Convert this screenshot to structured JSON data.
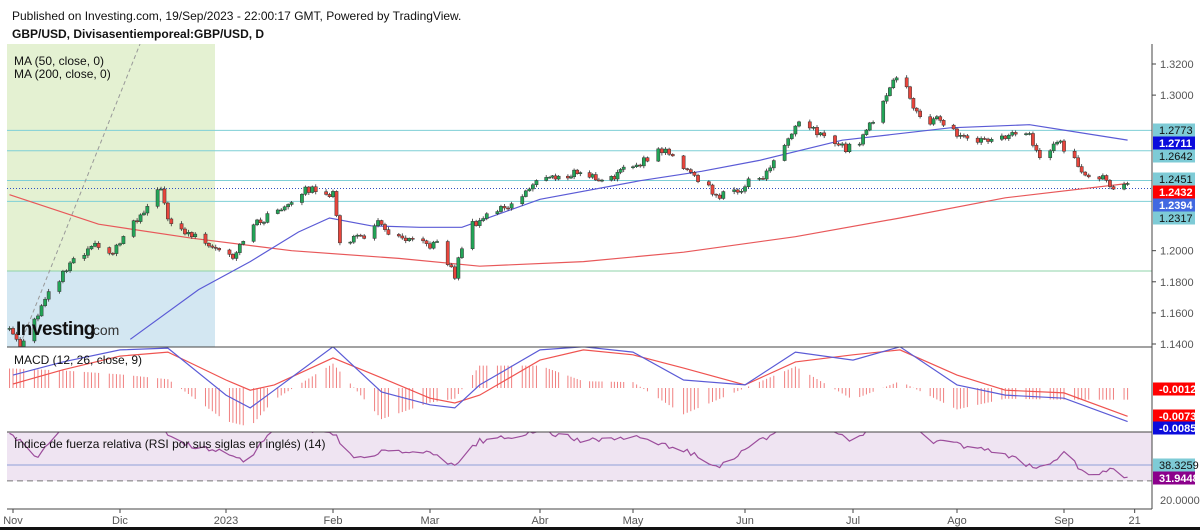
{
  "header": {
    "published": "Published on Investing.com, 19/Sep/2023 - 22:00:17 GMT, Powered by TradingView.",
    "symbol": "GBP/USD, Divisasentiemporeal:GBP/USD, D"
  },
  "logo": {
    "text": "Investing",
    "suffix": ".com"
  },
  "colors": {
    "up": "#22a557",
    "down": "#e8453c",
    "ma50": "#5b5bd6",
    "ma200": "#e8585a",
    "level_line": "#7fcfd6",
    "level_label": "#7ecbd6",
    "macd": "#5b5bd6",
    "signal": "#ef5350",
    "histogram": "#f08080",
    "rsi": "#9c4d9c",
    "rsi_band": "#efe4f2",
    "zone_green": "#e4f1d2",
    "zone_blue": "#d3e7f2"
  },
  "chart_data": [
    {
      "type": "candlestick",
      "title": "GBP/USD, Divisasentiemporeal:GBP/USD, D",
      "legend": [
        "MA (50, close, 0)",
        "MA (200, close, 0)"
      ],
      "ylim": [
        1.14,
        1.33
      ],
      "yticks": [
        "1.3200",
        "1.3000",
        "1.2000",
        "1.1800",
        "1.1600",
        "1.1400"
      ],
      "xticks": [
        "Nov",
        "Dic",
        "2023",
        "Feb",
        "Mar",
        "Abr",
        "May",
        "Jun",
        "Jul",
        "Ago",
        "Sep",
        "21"
      ],
      "xtick_dates": [
        "2022-11-01",
        "2022-12-01",
        "2023-01-01",
        "2023-02-01",
        "2023-03-01",
        "2023-04-01",
        "2023-05-01",
        "2023-06-01",
        "2023-07-01",
        "2023-08-01",
        "2023-09-01",
        "2023-09-21"
      ],
      "close_anchors": [
        [
          "2022-10-31",
          1.15
        ],
        [
          "2022-11-03",
          1.14
        ],
        [
          "2022-11-10",
          1.168
        ],
        [
          "2022-11-17",
          1.191
        ],
        [
          "2022-11-25",
          1.204
        ],
        [
          "2022-11-28",
          1.196
        ],
        [
          "2022-12-05",
          1.217
        ],
        [
          "2022-12-09",
          1.226
        ],
        [
          "2022-12-13",
          1.242
        ],
        [
          "2022-12-15",
          1.218
        ],
        [
          "2022-12-20",
          1.212
        ],
        [
          "2022-12-27",
          1.205
        ],
        [
          "2023-01-03",
          1.197
        ],
        [
          "2023-01-06",
          1.208
        ],
        [
          "2023-01-09",
          1.216
        ],
        [
          "2023-01-16",
          1.226
        ],
        [
          "2023-01-23",
          1.238
        ],
        [
          "2023-01-27",
          1.24
        ],
        [
          "2023-02-01",
          1.236
        ],
        [
          "2023-02-03",
          1.206
        ],
        [
          "2023-02-10",
          1.21
        ],
        [
          "2023-02-14",
          1.217
        ],
        [
          "2023-02-20",
          1.207
        ],
        [
          "2023-02-27",
          1.204
        ],
        [
          "2023-03-03",
          1.204
        ],
        [
          "2023-03-08",
          1.184
        ],
        [
          "2023-03-10",
          1.203
        ],
        [
          "2023-03-13",
          1.217
        ],
        [
          "2023-03-17",
          1.223
        ],
        [
          "2023-03-23",
          1.229
        ],
        [
          "2023-03-27",
          1.236
        ],
        [
          "2023-04-03",
          1.249
        ],
        [
          "2023-04-07",
          1.246
        ],
        [
          "2023-04-13",
          1.251
        ],
        [
          "2023-04-20",
          1.246
        ],
        [
          "2023-04-26",
          1.249
        ],
        [
          "2023-05-03",
          1.257
        ],
        [
          "2023-05-09",
          1.265
        ],
        [
          "2023-05-15",
          1.255
        ],
        [
          "2023-05-19",
          1.246
        ],
        [
          "2023-05-25",
          1.235
        ],
        [
          "2023-05-30",
          1.238
        ],
        [
          "2023-06-02",
          1.246
        ],
        [
          "2023-06-06",
          1.246
        ],
        [
          "2023-06-09",
          1.258
        ],
        [
          "2023-06-16",
          1.281
        ],
        [
          "2023-06-22",
          1.275
        ],
        [
          "2023-06-29",
          1.265
        ],
        [
          "2023-07-03",
          1.271
        ],
        [
          "2023-07-07",
          1.284
        ],
        [
          "2023-07-13",
          1.311
        ],
        [
          "2023-07-17",
          1.306
        ],
        [
          "2023-07-19",
          1.29
        ],
        [
          "2023-07-24",
          1.283
        ],
        [
          "2023-07-27",
          1.284
        ],
        [
          "2023-08-03",
          1.272
        ],
        [
          "2023-08-09",
          1.271
        ],
        [
          "2023-08-16",
          1.274
        ],
        [
          "2023-08-22",
          1.274
        ],
        [
          "2023-08-25",
          1.258
        ],
        [
          "2023-08-30",
          1.271
        ],
        [
          "2023-09-05",
          1.255
        ],
        [
          "2023-09-08",
          1.249
        ],
        [
          "2023-09-13",
          1.247
        ],
        [
          "2023-09-15",
          1.238
        ],
        [
          "2023-09-19",
          1.2432
        ]
      ],
      "ma50": [
        [
          "2022-12-04",
          1.143
        ],
        [
          "2022-12-24",
          1.175
        ],
        [
          "2023-01-08",
          1.193
        ],
        [
          "2023-01-22",
          1.212
        ],
        [
          "2023-01-31",
          1.221
        ],
        [
          "2023-02-12",
          1.216
        ],
        [
          "2023-02-26",
          1.215
        ],
        [
          "2023-03-10",
          1.215
        ],
        [
          "2023-04-01",
          1.233
        ],
        [
          "2023-05-03",
          1.245
        ],
        [
          "2023-05-20",
          1.251
        ],
        [
          "2023-06-05",
          1.258
        ],
        [
          "2023-06-28",
          1.271
        ],
        [
          "2023-07-30",
          1.279
        ],
        [
          "2023-08-22",
          1.281
        ],
        [
          "2023-09-19",
          1.2711
        ]
      ],
      "ma200": [
        [
          "2022-10-31",
          1.236
        ],
        [
          "2022-11-25",
          1.217
        ],
        [
          "2022-12-22",
          1.208
        ],
        [
          "2023-01-20",
          1.2
        ],
        [
          "2023-02-20",
          1.195
        ],
        [
          "2023-03-15",
          1.19
        ],
        [
          "2023-04-15",
          1.193
        ],
        [
          "2023-05-15",
          1.199
        ],
        [
          "2023-06-15",
          1.209
        ],
        [
          "2023-07-15",
          1.221
        ],
        [
          "2023-08-15",
          1.234
        ],
        [
          "2023-09-19",
          1.2432
        ]
      ],
      "levels": [
        {
          "value": 1.2773,
          "label": "1.2773",
          "style": "level"
        },
        {
          "value": 1.2642,
          "label": "1.2642",
          "style": "level"
        },
        {
          "value": 1.2451,
          "label": "1.2451",
          "style": "level"
        },
        {
          "value": 1.2317,
          "label": "1.2317",
          "style": "level"
        }
      ],
      "price_labels": [
        {
          "text": "1.2773",
          "bg": "#7ecbd6",
          "fg": "#111"
        },
        {
          "text": "1.2711",
          "bg": "#0b0bdc",
          "fg": "#fff"
        },
        {
          "text": "1.2642",
          "bg": "#7ecbd6",
          "fg": "#111"
        },
        {
          "text": "1.2451",
          "bg": "#7ecbd6",
          "fg": "#111"
        },
        {
          "text": "1.2432",
          "bg": "#ff0000",
          "fg": "#fff"
        },
        {
          "text": "1.2394",
          "bg": "#4169e1",
          "fg": "#fff"
        },
        {
          "text": "1.2317",
          "bg": "#7ecbd6",
          "fg": "#111"
        }
      ],
      "last_price": 1.2432
    },
    {
      "type": "line",
      "title": "MACD (12, 26, close, 9)",
      "macd": [
        [
          "2022-11-01",
          0.002
        ],
        [
          "2022-11-15",
          0.005
        ],
        [
          "2022-12-01",
          0.0077
        ],
        [
          "2022-12-15",
          0.0081
        ],
        [
          "2023-01-01",
          -0.0025
        ],
        [
          "2023-01-08",
          -0.0054
        ],
        [
          "2023-01-15",
          -0.0014
        ],
        [
          "2023-02-01",
          0.0084
        ],
        [
          "2023-02-15",
          -0.0018
        ],
        [
          "2023-03-01",
          -0.0047
        ],
        [
          "2023-03-08",
          -0.0054
        ],
        [
          "2023-03-15",
          -0.0002
        ],
        [
          "2023-04-01",
          0.0077
        ],
        [
          "2023-04-15",
          0.0084
        ],
        [
          "2023-05-01",
          0.0072
        ],
        [
          "2023-05-15",
          0.0009
        ],
        [
          "2023-06-01",
          -0.0002
        ],
        [
          "2023-06-15",
          0.0072
        ],
        [
          "2023-07-01",
          0.0054
        ],
        [
          "2023-07-15",
          0.0084
        ],
        [
          "2023-08-01",
          -0.0002
        ],
        [
          "2023-08-15",
          -0.0025
        ],
        [
          "2023-09-01",
          -0.0032
        ],
        [
          "2023-09-19",
          -0.0085
        ]
      ],
      "signal": [
        [
          "2022-11-01",
          0.0
        ],
        [
          "2022-11-15",
          0.0032
        ],
        [
          "2022-12-01",
          0.0063
        ],
        [
          "2022-12-15",
          0.0072
        ],
        [
          "2023-01-01",
          0.0009
        ],
        [
          "2023-01-08",
          -0.0014
        ],
        [
          "2023-01-15",
          -0.0002
        ],
        [
          "2023-02-01",
          0.0059
        ],
        [
          "2023-02-15",
          0.0014
        ],
        [
          "2023-03-01",
          -0.0032
        ],
        [
          "2023-03-08",
          -0.0043
        ],
        [
          "2023-03-15",
          -0.0025
        ],
        [
          "2023-04-01",
          0.0054
        ],
        [
          "2023-04-15",
          0.0077
        ],
        [
          "2023-05-01",
          0.0066
        ],
        [
          "2023-05-15",
          0.0036
        ],
        [
          "2023-06-01",
          -0.0002
        ],
        [
          "2023-06-15",
          0.005
        ],
        [
          "2023-07-01",
          0.0066
        ],
        [
          "2023-07-15",
          0.0077
        ],
        [
          "2023-08-01",
          0.002
        ],
        [
          "2023-08-15",
          -0.0014
        ],
        [
          "2023-09-01",
          -0.002
        ],
        [
          "2023-09-19",
          -0.0073
        ]
      ],
      "labels": [
        {
          "text": "-0.0012",
          "bg": "#ff0000",
          "fg": "#fff"
        },
        {
          "text": "-0.0073",
          "bg": "#ff0000",
          "fg": "#fff"
        },
        {
          "text": "-0.0085",
          "bg": "#0b0bdc",
          "fg": "#fff"
        }
      ]
    },
    {
      "type": "line",
      "title": "Índice de fuerza relativa (RSI por sus siglas en inglés) (14)",
      "ylim": [
        20,
        55
      ],
      "yticks": [
        "20.0000"
      ],
      "rsi": [
        [
          "2022-11-01",
          54
        ],
        [
          "2022-11-08",
          41
        ],
        [
          "2022-11-15",
          60
        ],
        [
          "2022-12-01",
          65
        ],
        [
          "2022-12-15",
          55
        ],
        [
          "2022-12-20",
          49
        ],
        [
          "2023-01-01",
          45
        ],
        [
          "2023-01-08",
          40
        ],
        [
          "2023-01-15",
          60
        ],
        [
          "2023-02-01",
          55
        ],
        [
          "2023-02-08",
          41
        ],
        [
          "2023-02-15",
          46
        ],
        [
          "2023-03-01",
          44
        ],
        [
          "2023-03-08",
          38
        ],
        [
          "2023-03-15",
          51
        ],
        [
          "2023-04-01",
          56
        ],
        [
          "2023-04-15",
          51
        ],
        [
          "2023-05-01",
          53
        ],
        [
          "2023-05-15",
          46
        ],
        [
          "2023-05-25",
          38
        ],
        [
          "2023-06-01",
          46
        ],
        [
          "2023-06-15",
          62
        ],
        [
          "2023-07-01",
          51
        ],
        [
          "2023-07-15",
          65
        ],
        [
          "2023-07-25",
          51
        ],
        [
          "2023-08-01",
          49
        ],
        [
          "2023-08-15",
          44
        ],
        [
          "2023-08-24",
          36
        ],
        [
          "2023-09-01",
          44
        ],
        [
          "2023-09-08",
          33
        ],
        [
          "2023-09-14",
          36
        ],
        [
          "2023-09-19",
          31.9448
        ]
      ],
      "level": 38.3259,
      "oversold": 30,
      "labels": [
        {
          "text": "38.3259",
          "bg": "#7ecbd6",
          "fg": "#111"
        },
        {
          "text": "31.9448",
          "bg": "#8b008b",
          "fg": "#fff"
        }
      ]
    }
  ]
}
